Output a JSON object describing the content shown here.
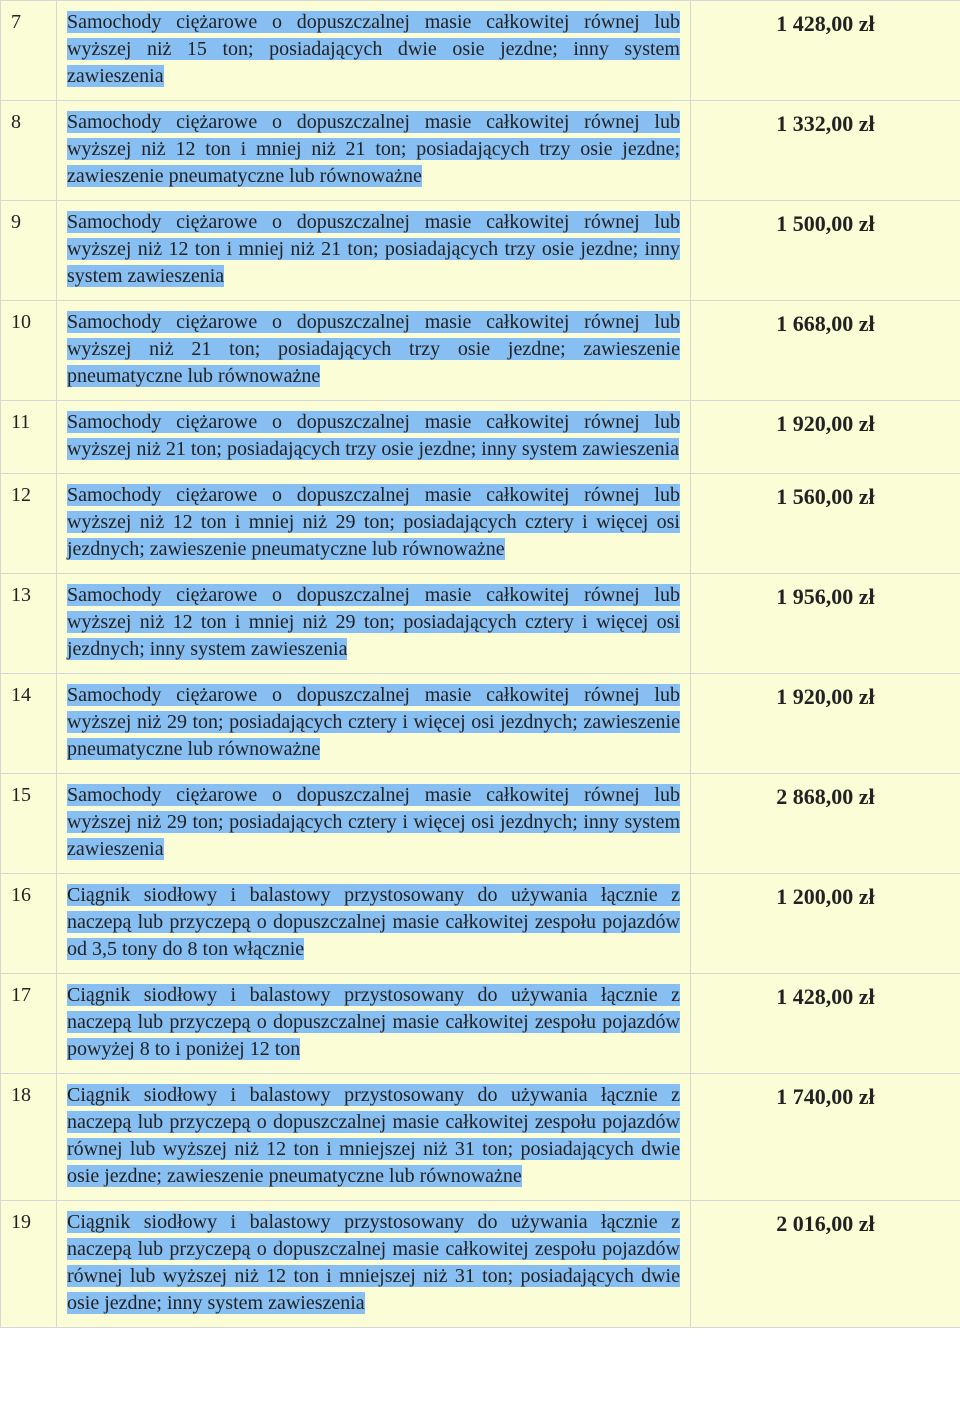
{
  "colors": {
    "row_background": "#fafdd5",
    "highlight": "#88bff2",
    "border": "#d6d6d6",
    "text": "#222222"
  },
  "currency_suffix": " zł",
  "rows": [
    {
      "num": "7",
      "desc": "Samochody ciężarowe o dopuszczalnej masie całkowitej równej lub wyższej niż 15 ton; posiadających dwie osie jezdne; inny system zawieszenia",
      "price": "1 428,00 zł"
    },
    {
      "num": "8",
      "desc": "Samochody ciężarowe o dopuszczalnej masie całkowitej równej lub wyższej niż 12 ton i mniej niż 21 ton; posiadających trzy osie jezdne; zawieszenie pneumatyczne lub równoważne",
      "price": "1 332,00 zł"
    },
    {
      "num": "9",
      "desc": "Samochody ciężarowe o dopuszczalnej masie całkowitej równej lub wyższej niż 12 ton i mniej niż 21 ton; posiadających trzy osie jezdne; inny system zawieszenia",
      "price": "1 500,00 zł"
    },
    {
      "num": "10",
      "desc": "Samochody ciężarowe o dopuszczalnej masie całkowitej równej lub wyższej niż 21 ton; posiadających trzy osie jezdne; zawieszenie pneumatyczne lub równoważne",
      "price": "1 668,00 zł"
    },
    {
      "num": "11",
      "desc": "Samochody ciężarowe o dopuszczalnej masie całkowitej równej lub wyższej niż 21 ton; posiadających trzy osie jezdne; inny system zawieszenia",
      "price": "1 920,00 zł"
    },
    {
      "num": "12",
      "desc": "Samochody ciężarowe o dopuszczalnej masie całkowitej równej lub wyższej niż 12 ton i mniej niż 29 ton; posiadających cztery i więcej osi jezdnych; zawieszenie pneumatyczne lub równoważne",
      "price": "1 560,00 zł"
    },
    {
      "num": "13",
      "desc": "Samochody ciężarowe o dopuszczalnej masie całkowitej równej lub wyższej niż 12 ton i mniej niż 29 ton; posiadających cztery i więcej osi jezdnych; inny system zawieszenia",
      "price": "1 956,00 zł"
    },
    {
      "num": "14",
      "desc": "Samochody ciężarowe o dopuszczalnej masie całkowitej równej lub wyższej niż 29 ton; posiadających cztery i więcej osi jezdnych; zawieszenie pneumatyczne lub równoważne",
      "price": "1 920,00 zł"
    },
    {
      "num": "15",
      "desc": "Samochody ciężarowe o dopuszczalnej masie całkowitej równej lub wyższej niż 29 ton; posiadających cztery i więcej osi jezdnych; inny system zawieszenia",
      "price": "2 868,00 zł"
    },
    {
      "num": "16",
      "desc": "Ciągnik siodłowy i balastowy przystosowany do używania łącznie z naczepą lub przyczepą o dopuszczalnej masie całkowitej zespołu pojazdów od 3,5 tony do 8 ton włącznie",
      "price": "1 200,00 zł"
    },
    {
      "num": "17",
      "desc": "Ciągnik siodłowy i balastowy przystosowany do używania łącznie z naczepą lub przyczepą o dopuszczalnej masie całkowitej zespołu pojazdów powyżej 8 to i poniżej 12 ton",
      "price": "1 428,00 zł"
    },
    {
      "num": "18",
      "desc": "Ciągnik siodłowy i balastowy przystosowany do używania łącznie z naczepą lub przyczepą o dopuszczalnej masie całkowitej zespołu pojazdów równej lub wyższej niż 12 ton i mniejszej niż 31 ton; posiadających dwie osie jezdne; zawieszenie pneumatyczne lub równoważne",
      "price": "1 740,00 zł"
    },
    {
      "num": "19",
      "desc": "Ciągnik siodłowy i balastowy przystosowany do używania łącznie z naczepą lub przyczepą o dopuszczalnej masie całkowitej zespołu pojazdów równej lub wyższej niż 12 ton i mniejszej niż 31 ton; posiadających dwie osie jezdne; inny system zawieszenia",
      "price": "2 016,00 zł"
    }
  ]
}
